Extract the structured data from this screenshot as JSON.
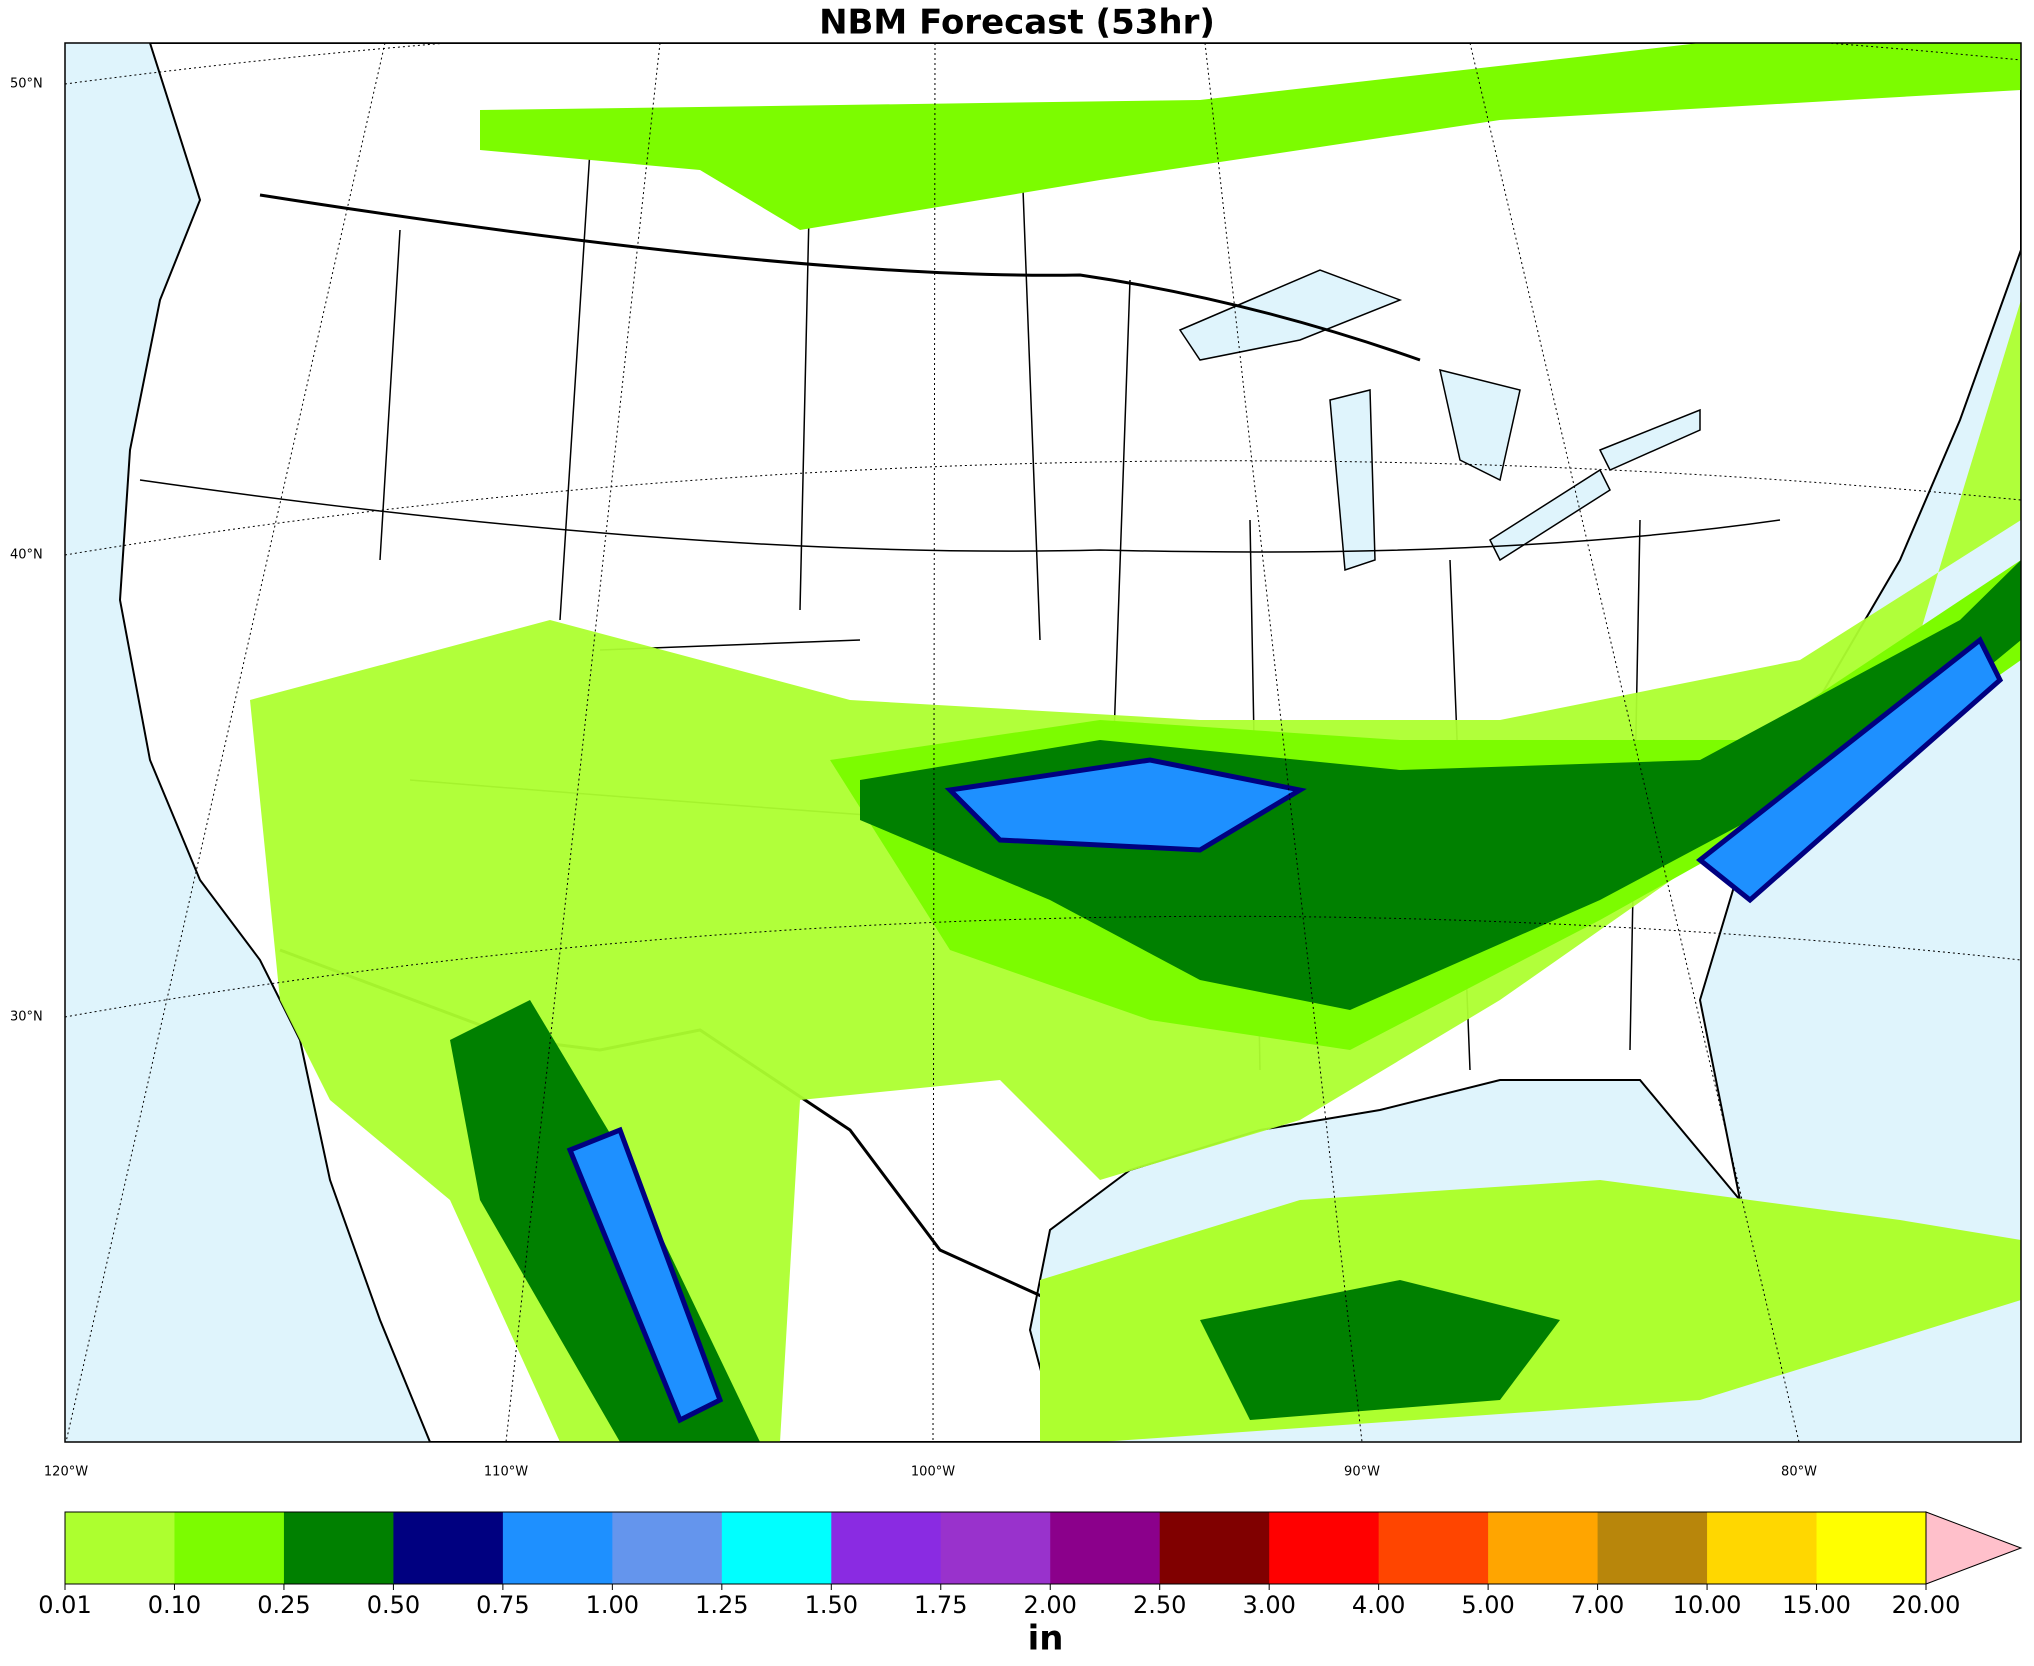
{
  "map": {
    "title": "NBM Forecast (53hr)",
    "lat_labels": [
      "50°N",
      "40°N",
      "30°N"
    ],
    "lon_labels": [
      "120°W",
      "110°W",
      "100°W",
      "90°W",
      "80°W"
    ],
    "colorbar": {
      "label": "in",
      "ticks": [
        {
          "value": 0.01,
          "label": "0.01"
        },
        {
          "value": 0.1,
          "label": "0.10"
        },
        {
          "value": 0.25,
          "label": "0.25"
        },
        {
          "value": 0.5,
          "label": "0.50"
        },
        {
          "value": 0.75,
          "label": "0.75"
        },
        {
          "value": 1,
          "label": "1.00"
        },
        {
          "value": 1.25,
          "label": "1.25"
        },
        {
          "value": 1.5,
          "label": "1.50"
        },
        {
          "value": 1.75,
          "label": "1.75"
        },
        {
          "value": 2,
          "label": "2.00"
        },
        {
          "value": 2.5,
          "label": "2.50"
        },
        {
          "value": 3,
          "label": "3.00"
        },
        {
          "value": 4,
          "label": "4.00"
        },
        {
          "value": 5,
          "label": "5.00"
        },
        {
          "value": 7,
          "label": "7.00"
        },
        {
          "value": 10,
          "label": "10.00"
        },
        {
          "value": 15,
          "label": "15.00"
        },
        {
          "value": 20,
          "label": "20.00"
        }
      ],
      "colors": [
        "#adff2f",
        "#7cfc00",
        "#008000",
        "#000080",
        "#1e90ff",
        "#6495ed",
        "#00ffff",
        "#8a2be2",
        "#9932cc",
        "#8b008b",
        "#800000",
        "#ff0000",
        "#ff4500",
        "#ffa500",
        "#b8860b",
        "#ffd700",
        "#ffff00"
      ],
      "extend_color": "#ffc0cb"
    }
  }
}
